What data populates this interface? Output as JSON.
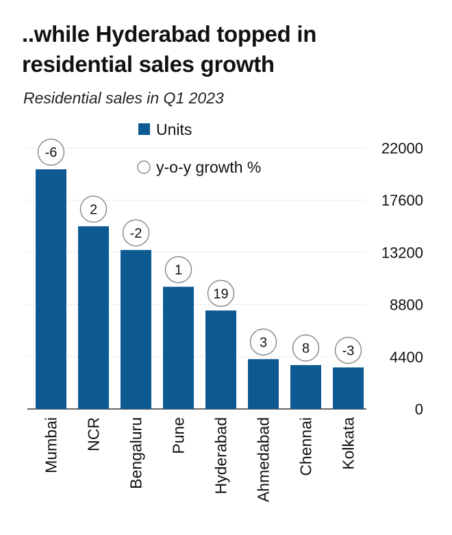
{
  "title": "..while Hyderabad topped in residential sales growth",
  "subtitle": "Residential sales in Q1 2023",
  "colors": {
    "bar": "#0d5a92",
    "grid": "#b3b3b3",
    "bubble_stroke": "#8c8c8c"
  },
  "chart_data": {
    "type": "bar",
    "categories": [
      "Mumbai",
      "NCR",
      "Bengaluru",
      "Pune",
      "Hyderabad",
      "Ahmedabad",
      "Chennai",
      "Kolkata"
    ],
    "series": [
      {
        "name": "Units",
        "values": [
          20200,
          15400,
          13400,
          10300,
          8300,
          4200,
          3700,
          3500
        ]
      },
      {
        "name": "y-o-y growth %",
        "values": [
          -6,
          2,
          -2,
          1,
          19,
          3,
          8,
          -3
        ]
      }
    ],
    "yticks": [
      "0",
      "4400",
      "8800",
      "13200",
      "17600",
      "22000"
    ],
    "ylim": [
      0,
      22000
    ],
    "grid": true,
    "y_axis_position": "right",
    "legend_position": "top-center"
  }
}
